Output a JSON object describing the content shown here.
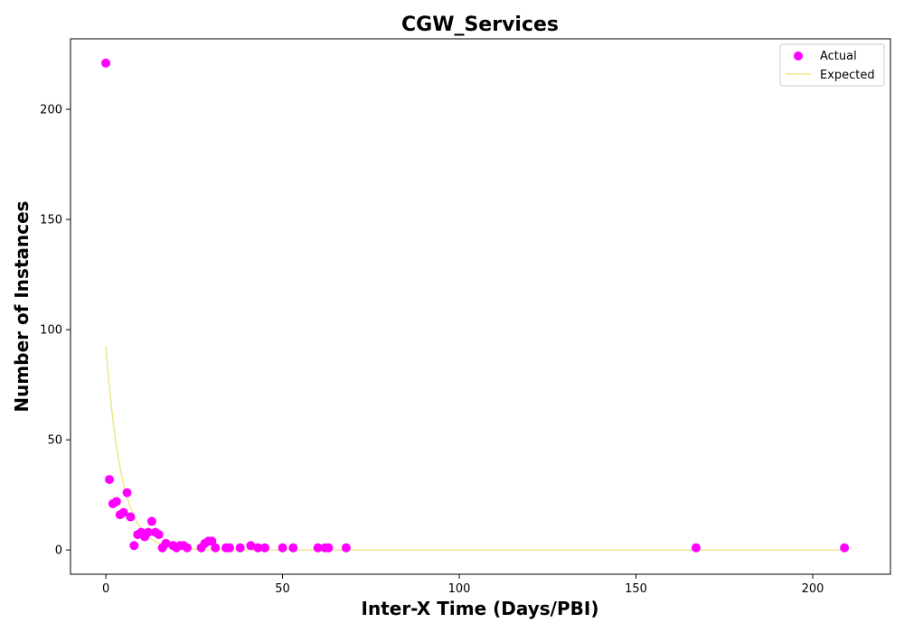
{
  "chart_data": {
    "type": "scatter",
    "title": "CGW_Services",
    "xlabel": "Inter-X Time (Days/PBI)",
    "ylabel": "Number of Instances",
    "xlim": [
      -10,
      222
    ],
    "ylim": [
      -11,
      232
    ],
    "x_ticks": [
      0,
      50,
      100,
      150,
      200
    ],
    "y_ticks": [
      0,
      50,
      100,
      150,
      200
    ],
    "grid": false,
    "legend_position": "top-right",
    "series": [
      {
        "name": "Actual",
        "kind": "scatter",
        "color": "#ff00ff",
        "points": [
          [
            0,
            221
          ],
          [
            1,
            32
          ],
          [
            2,
            21
          ],
          [
            3,
            22
          ],
          [
            4,
            16
          ],
          [
            5,
            17
          ],
          [
            6,
            26
          ],
          [
            7,
            15
          ],
          [
            8,
            2
          ],
          [
            9,
            7
          ],
          [
            10,
            8
          ],
          [
            11,
            6
          ],
          [
            12,
            8
          ],
          [
            13,
            13
          ],
          [
            14,
            8
          ],
          [
            15,
            7
          ],
          [
            16,
            1
          ],
          [
            17,
            3
          ],
          [
            19,
            2
          ],
          [
            20,
            1
          ],
          [
            21,
            2
          ],
          [
            22,
            2
          ],
          [
            23,
            1
          ],
          [
            27,
            1
          ],
          [
            28,
            3
          ],
          [
            29,
            4
          ],
          [
            30,
            4
          ],
          [
            31,
            1
          ],
          [
            34,
            1
          ],
          [
            35,
            1
          ],
          [
            38,
            1
          ],
          [
            41,
            2
          ],
          [
            43,
            1
          ],
          [
            45,
            1
          ],
          [
            50,
            1
          ],
          [
            53,
            1
          ],
          [
            60,
            1
          ],
          [
            62,
            1
          ],
          [
            63,
            1
          ],
          [
            68,
            1
          ],
          [
            167,
            1
          ],
          [
            209,
            1
          ]
        ]
      },
      {
        "name": "Expected",
        "kind": "line",
        "color": "#f0e68c",
        "points": [
          [
            0,
            92.5
          ],
          [
            1,
            73.8
          ],
          [
            2,
            58.9
          ],
          [
            3,
            47.0
          ],
          [
            4,
            37.5
          ],
          [
            5,
            29.9
          ],
          [
            6,
            23.9
          ],
          [
            7,
            19.0
          ],
          [
            8,
            15.2
          ],
          [
            9,
            12.1
          ],
          [
            10,
            9.7
          ],
          [
            11,
            7.7
          ],
          [
            12,
            6.1
          ],
          [
            13,
            4.9
          ],
          [
            14,
            3.9
          ],
          [
            15,
            3.1
          ],
          [
            16,
            2.5
          ],
          [
            17,
            2.0
          ],
          [
            18,
            1.6
          ],
          [
            19,
            1.3
          ],
          [
            20,
            1.0
          ],
          [
            22,
            0.6
          ],
          [
            24,
            0.4
          ],
          [
            26,
            0.3
          ],
          [
            28,
            0.2
          ],
          [
            30,
            0.1
          ],
          [
            35,
            0.0
          ],
          [
            50,
            0.0
          ],
          [
            100,
            0.0
          ],
          [
            150,
            0.0
          ],
          [
            209,
            0.0
          ]
        ]
      }
    ]
  }
}
